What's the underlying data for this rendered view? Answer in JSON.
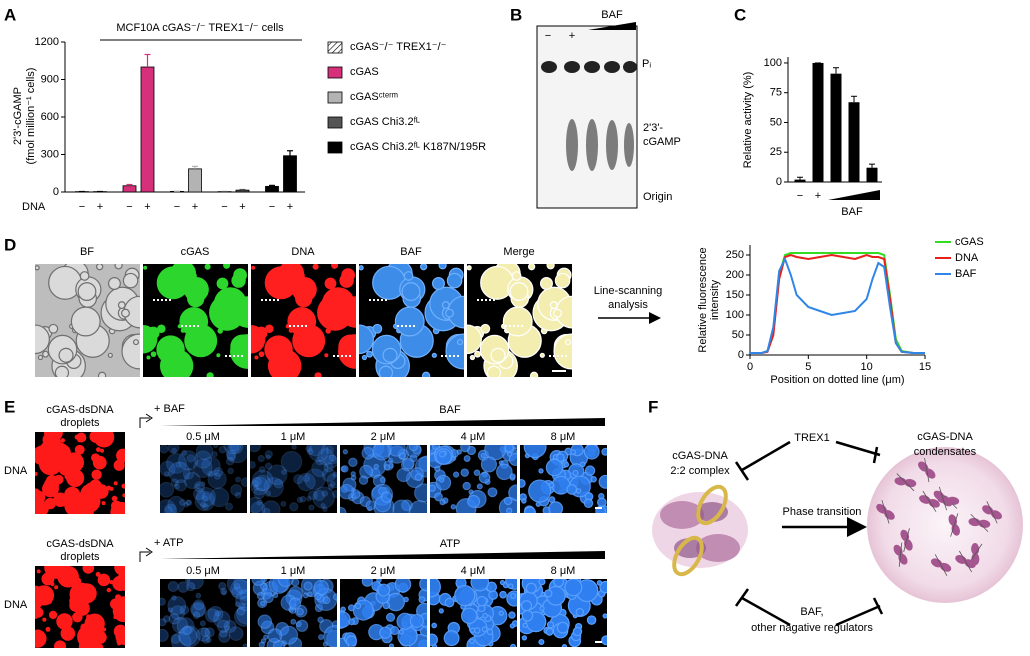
{
  "panel_labels": [
    "A",
    "B",
    "C",
    "D",
    "E",
    "F"
  ],
  "chart_data": [
    {
      "type": "bar",
      "title": "MCF10A cGAS⁻/⁻ TREX1⁻/⁻ cells",
      "ylabel": [
        "2'3'-cGAMP",
        "(fmol million⁻¹ cells)"
      ],
      "xlabel": "DNA",
      "categories": [
        "−",
        "+"
      ],
      "ylim": [
        0,
        1200
      ],
      "yticks": [
        0,
        300,
        600,
        900,
        1200
      ],
      "series": [
        {
          "name": "cGAS⁻/⁻ TREX1⁻/⁻",
          "color": "#ffffff",
          "hatch": true,
          "values": [
            3,
            3
          ],
          "errors": [
            1,
            1
          ]
        },
        {
          "name": "cGAS",
          "color": "#d6307a",
          "values": [
            50,
            1000
          ],
          "errors": [
            10,
            100
          ]
        },
        {
          "name": "cGASᶜᵗᵉʳᵐ",
          "color": "#b3b3b3",
          "values": [
            5,
            185
          ],
          "errors": [
            1,
            20
          ]
        },
        {
          "name": "cGAS Chi3.2ᶠᴸ",
          "color": "#555555",
          "values": [
            3,
            15
          ],
          "errors": [
            1,
            5
          ]
        },
        {
          "name": "cGAS Chi3.2ᶠᴸ K187N/195R",
          "color": "#000000",
          "values": [
            45,
            290
          ],
          "errors": [
            8,
            40
          ]
        }
      ]
    },
    {
      "type": "bar",
      "ylabel": "Relative activity (%)",
      "xlabel": "BAF",
      "categories": [
        "−",
        "+",
        null,
        null,
        null
      ],
      "values": [
        2,
        100,
        91,
        67,
        12
      ],
      "errors": [
        2,
        0,
        5,
        5,
        3
      ],
      "color": "#000000",
      "ylim": [
        0,
        105
      ],
      "yticks": [
        0,
        25,
        50,
        75,
        100
      ]
    },
    {
      "type": "line",
      "ylabel": [
        "Relative fluorescence",
        "intensity"
      ],
      "xlabel": "Position on dotted line (μm)",
      "x": [
        0,
        0.5,
        1,
        1.5,
        2,
        2.5,
        3,
        3.5,
        4,
        5,
        6,
        7,
        8,
        9,
        10,
        10.5,
        11,
        11.5,
        12,
        12.5,
        13,
        14,
        15
      ],
      "xlim": [
        0,
        15
      ],
      "xticks": [
        0,
        5,
        10,
        15
      ],
      "ylim": [
        0,
        275
      ],
      "yticks": [
        0,
        50,
        100,
        150,
        200,
        250
      ],
      "legend": "right",
      "series": [
        {
          "name": "cGAS",
          "color": "#33dd22",
          "values": [
            5,
            5,
            5,
            10,
            60,
            200,
            250,
            255,
            255,
            255,
            255,
            255,
            255,
            255,
            255,
            255,
            255,
            250,
            150,
            40,
            10,
            5,
            5
          ]
        },
        {
          "name": "DNA",
          "color": "#e8201c",
          "values": [
            5,
            5,
            5,
            8,
            50,
            190,
            245,
            250,
            245,
            240,
            245,
            250,
            245,
            240,
            250,
            245,
            245,
            240,
            140,
            30,
            8,
            5,
            5
          ]
        },
        {
          "name": "BAF",
          "color": "#2f86e8",
          "values": [
            5,
            5,
            5,
            10,
            70,
            210,
            240,
            200,
            150,
            120,
            110,
            100,
            105,
            110,
            140,
            190,
            230,
            220,
            120,
            30,
            8,
            5,
            5
          ]
        }
      ]
    }
  ],
  "gel": {
    "lanes": [
      "−",
      "+"
    ],
    "reagent": "BAF",
    "bands": [
      "Pᵢ",
      "2'3'-",
      "cGAMP",
      "Origin"
    ]
  },
  "panel_d": {
    "images": [
      "BF",
      "cGAS",
      "DNA",
      "BAF",
      "Merge"
    ],
    "arrow_label": [
      "Line-scanning",
      "analysis"
    ]
  },
  "panel_e": {
    "rows": [
      {
        "title": [
          "cGAS-dsDNA",
          "droplets"
        ],
        "channel": "DNA",
        "treatment": "+ BAF",
        "reagent": "BAF",
        "concentrations": [
          "0.5 μM",
          "1 μM",
          "2 μM",
          "4 μM",
          "8 μM"
        ]
      },
      {
        "title": [
          "cGAS-dsDNA",
          "droplets"
        ],
        "channel": "DNA",
        "treatment": "+ ATP",
        "reagent": "ATP",
        "concentrations": [
          "0.5 μM",
          "1 μM",
          "2 μM",
          "4 μM",
          "8 μM"
        ]
      }
    ]
  },
  "panel_f": {
    "complex": [
      "cGAS-DNA",
      "2:2 complex"
    ],
    "condensates": [
      "cGAS-DNA",
      "condensates"
    ],
    "top": "TREX1",
    "middle": "Phase transition",
    "bottom": [
      "BAF,",
      "other nagative regulators"
    ]
  }
}
